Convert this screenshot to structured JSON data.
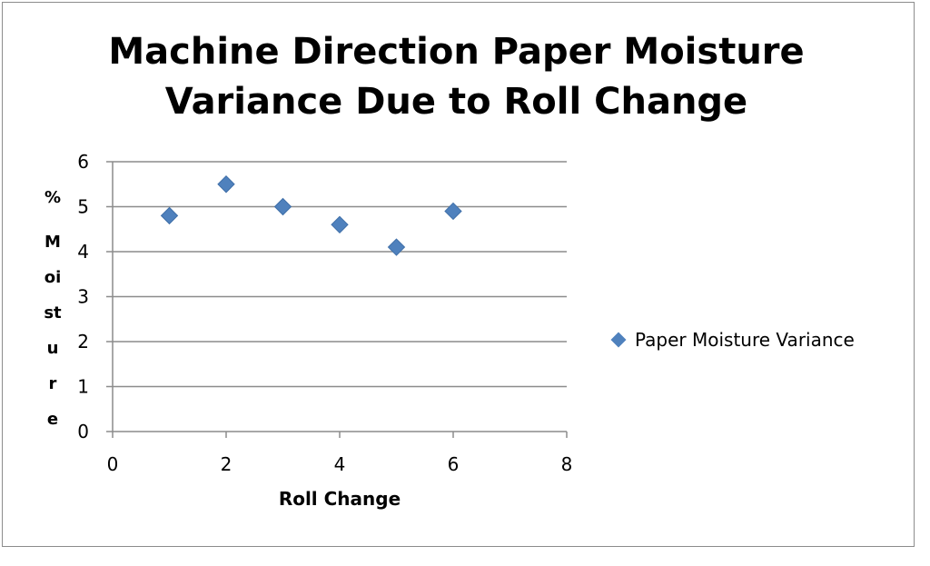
{
  "chart_data": {
    "type": "scatter",
    "title": "Machine Direction Paper Moisture Variance Due to Roll Change",
    "xlabel": "Roll Change",
    "ylabel_prefix": "%",
    "ylabel_word": "Moisture",
    "xlim": [
      0,
      8
    ],
    "ylim": [
      0,
      6
    ],
    "xticks": [
      0,
      2,
      4,
      6,
      8
    ],
    "yticks": [
      0,
      1,
      2,
      3,
      4,
      5,
      6
    ],
    "grid": "horizontal",
    "legend_position": "right",
    "series": [
      {
        "name": "Paper Moisture Variance",
        "color": "#4f81bd",
        "marker": "diamond",
        "x": [
          1,
          2,
          3,
          4,
          5,
          6
        ],
        "y": [
          4.8,
          5.5,
          5.0,
          4.6,
          4.1,
          4.9
        ]
      }
    ]
  }
}
